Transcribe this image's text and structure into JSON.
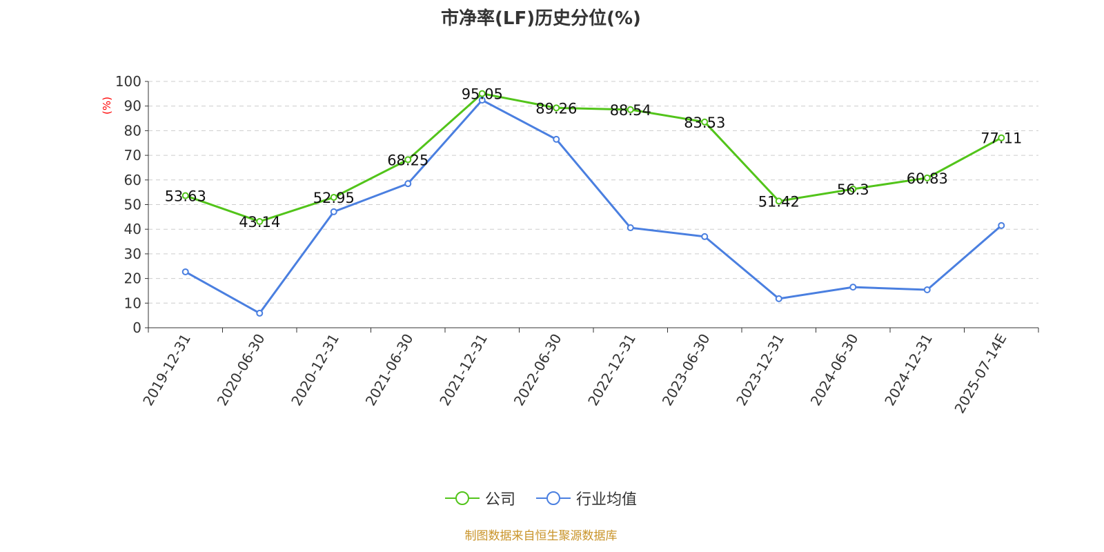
{
  "chart_data": {
    "type": "line",
    "title": "市净率(LF)历史分位(%)",
    "ylabel": "(%)",
    "ylim": [
      0,
      100
    ],
    "yticks": [
      0,
      10,
      20,
      30,
      40,
      50,
      60,
      70,
      80,
      90,
      100
    ],
    "grid": true,
    "legend_position": "bottom",
    "categories": [
      "2019-12-31",
      "2020-06-30",
      "2020-12-31",
      "2021-06-30",
      "2021-12-31",
      "2022-06-30",
      "2022-12-31",
      "2023-06-30",
      "2023-12-31",
      "2024-06-30",
      "2024-12-31",
      "2025-07-14E"
    ],
    "series": [
      {
        "name": "公司",
        "color": "#52c41a",
        "values": [
          53.63,
          43.14,
          52.95,
          68.25,
          95.05,
          89.26,
          88.54,
          83.53,
          51.42,
          56.3,
          60.83,
          77.11
        ],
        "labels": [
          "53.63",
          "43.14",
          "52.95",
          "68.25",
          "95.05",
          "89.26",
          "88.54",
          "83.53",
          "51.42",
          "56.3",
          "60.83",
          "77.11"
        ]
      },
      {
        "name": "行业均值",
        "color": "#4a7fe0",
        "values": [
          22.7,
          5.9,
          47.1,
          58.5,
          92.4,
          76.5,
          40.6,
          37.0,
          11.8,
          16.5,
          15.4,
          41.5
        ]
      }
    ]
  },
  "footer": "制图数据来自恒生聚源数据库"
}
